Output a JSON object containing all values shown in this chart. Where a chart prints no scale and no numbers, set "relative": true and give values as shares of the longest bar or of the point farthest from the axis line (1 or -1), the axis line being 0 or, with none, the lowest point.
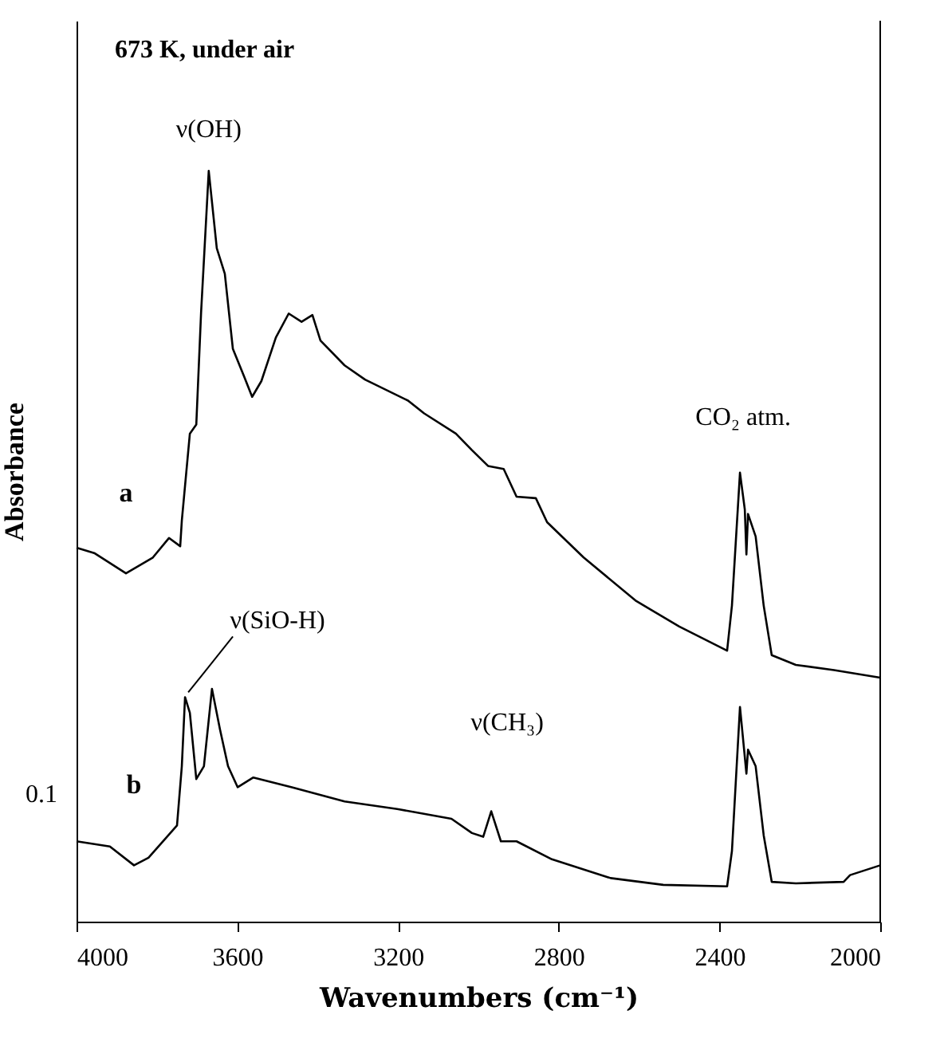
{
  "chart_data": {
    "type": "line",
    "xlabel": "Wavenumbers (cm⁻¹)",
    "ylabel": "Absorbance",
    "relative": true,
    "xlim": [
      4000,
      2000
    ],
    "xticks": [
      4000,
      3600,
      3200,
      2800,
      2400,
      2000
    ],
    "grid": false,
    "marker": "none",
    "line_style": "solid",
    "series": [
      {
        "name": "a",
        "color": "#000000",
        "x": [
          4000,
          3956,
          3877,
          3810,
          3770,
          3742,
          3738,
          3718,
          3702,
          3690,
          3671,
          3651,
          3631,
          3611,
          3583,
          3563,
          3540,
          3504,
          3472,
          3440,
          3413,
          3393,
          3333,
          3282,
          3175,
          3135,
          3056,
          3016,
          2976,
          2937,
          2905,
          2857,
          2829,
          2738,
          2607,
          2500,
          2381,
          2369,
          2349,
          2337,
          2333,
          2329,
          2310,
          2290,
          2270,
          2210,
          2115,
          2000
        ],
        "values": [
          0.498,
          0.491,
          0.464,
          0.485,
          0.511,
          0.5,
          0.534,
          0.65,
          0.662,
          0.812,
          1,
          0.897,
          0.863,
          0.763,
          0.726,
          0.699,
          0.72,
          0.778,
          0.81,
          0.799,
          0.808,
          0.774,
          0.741,
          0.722,
          0.694,
          0.677,
          0.65,
          0.628,
          0.607,
          0.603,
          0.566,
          0.564,
          0.532,
          0.485,
          0.427,
          0.393,
          0.361,
          0.421,
          0.598,
          0.549,
          0.489,
          0.543,
          0.513,
          0.421,
          0.355,
          0.342,
          0.335,
          0.325
        ]
      },
      {
        "name": "b",
        "color": "#000000",
        "x": [
          4000,
          3917,
          3857,
          3821,
          3778,
          3750,
          3738,
          3730,
          3718,
          3702,
          3683,
          3663,
          3643,
          3623,
          3599,
          3560,
          3464,
          3333,
          3202,
          3067,
          3016,
          2988,
          2968,
          2944,
          2905,
          2817,
          2671,
          2540,
          2381,
          2369,
          2349,
          2333,
          2329,
          2310,
          2290,
          2270,
          2210,
          2091,
          2075,
          2000
        ],
        "values": [
          0.107,
          0.1,
          0.075,
          0.085,
          0.111,
          0.128,
          0.207,
          0.299,
          0.278,
          0.19,
          0.207,
          0.31,
          0.256,
          0.207,
          0.179,
          0.192,
          0.179,
          0.16,
          0.15,
          0.137,
          0.118,
          0.113,
          0.147,
          0.107,
          0.107,
          0.083,
          0.058,
          0.049,
          0.047,
          0.094,
          0.286,
          0.197,
          0.229,
          0.207,
          0.115,
          0.053,
          0.051,
          0.053,
          0.062,
          0.075
        ]
      }
    ],
    "annotations": [
      "673 K, under air",
      {
        "text": "ν(OH)",
        "x": 3671,
        "y": 1
      },
      {
        "text": "CO₂ atm.",
        "x": 2349,
        "y": 0.598
      },
      {
        "text": "ν(SiO-H)",
        "x": 3730,
        "y": 0.299
      },
      {
        "text": "ν(CH₃)",
        "x": 2968,
        "y": 0.147
      },
      "0.1"
    ]
  }
}
